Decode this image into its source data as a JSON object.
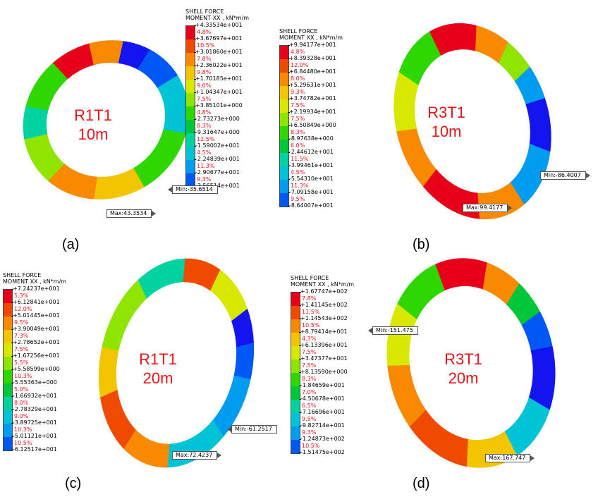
{
  "colors": {
    "scale": [
      "#e8001a",
      "#f04a00",
      "#f98a00",
      "#f3c400",
      "#d8e800",
      "#8fe400",
      "#2fd700",
      "#00c63a",
      "#00d2a0",
      "#00c4d6",
      "#009cf0",
      "#0058f4",
      "#1414f0"
    ],
    "title": "#e8141c"
  },
  "panels": [
    {
      "id": "a",
      "label": "(a)",
      "title_line1": "R1T1",
      "title_line2": "10m",
      "legend": {
        "header1": "SHELL FORCE",
        "header2": "MOMENT XX , kN*m/m",
        "values": [
          "+4.33534e+001",
          "+3.67697e+001",
          "+3.01860e+001",
          "+2.36022e+001",
          "+1.70185e+001",
          "+1.04347e+001",
          "+3.85101e+000",
          "-2.73273e+000",
          "-9.31647e+000",
          "-1.59002e+001",
          "-2.24839e+001",
          "-2.90677e+001",
          "-3.56514e+001"
        ],
        "percents": [
          "4.8%",
          "10.5%",
          "7.8%",
          "9.8%",
          "9.0%",
          "7.5%",
          "4.8%",
          "8.3%",
          "12.5%",
          "4.5%",
          "11.3%",
          "9.3%"
        ]
      },
      "max_label": "Max:43.3534",
      "min_label": "Min:-35.6514"
    },
    {
      "id": "b",
      "label": "(b)",
      "title_line1": "R3T1",
      "title_line2": "10m",
      "legend": {
        "header1": "SHELL FORCE",
        "header2": "MOMENT XX , kN*m/m",
        "values": [
          "+9.94177e+001",
          "+8.39328e+001",
          "+6.84480e+001",
          "+5.29631e+001",
          "+3.74782e+001",
          "+2.19934e+001",
          "+6.50849e+000",
          "-8.97638e+000",
          "-2.44612e+001",
          "-3.99461e+001",
          "-5.54310e+001",
          "-7.09158e+001",
          "-8.64007e+001"
        ],
        "percents": [
          "4.8%",
          "12.0%",
          "8.0%",
          "9.3%",
          "7.5%",
          "7.5%",
          "8.3%",
          "6.0%",
          "11.5%",
          "4.5%",
          "11.3%",
          "9.5%"
        ]
      },
      "max_label": "Max:99.4177",
      "min_label": "Min:-86.4007"
    },
    {
      "id": "c",
      "label": "(c)",
      "title_line1": "R1T1",
      "title_line2": "20m",
      "legend": {
        "header1": "SHELL FORCE",
        "header2": "MOMENT XX , kN*m/m",
        "values": [
          "+7.24237e+001",
          "+6.12841e+001",
          "+5.01445e+001",
          "+3.90049e+001",
          "+2.78652e+001",
          "+1.67256e+001",
          "+5.58599e+000",
          "-5.55363e+000",
          "-1.66932e+001",
          "-2.78329e+001",
          "-3.89725e+001",
          "-5.01121e+001",
          "-6.12517e+001"
        ],
        "percents": [
          "5.3%",
          "12.0%",
          "9.5%",
          "7.3%",
          "7.5%",
          "5.5%",
          "10.3%",
          "5.0%",
          "8.0%",
          "9.0%",
          "10.3%",
          "10.5%"
        ]
      },
      "max_label": "Max:72.4237",
      "min_label": "Min:-61.2517"
    },
    {
      "id": "d",
      "label": "(d)",
      "title_line1": "R3T1",
      "title_line2": "20m",
      "legend": {
        "header1": "SHELL FORCE",
        "header2": "MOMENT XX , kN*m/m",
        "values": [
          "+1.67747e+002",
          "+1.41145e+002",
          "+1.14543e+002",
          "+8.79414e+001",
          "+6.13396e+001",
          "+3.47377e+001",
          "+8.13590e+000",
          "-1.84659e+001",
          "-4.50678e+001",
          "-7.16696e+001",
          "-9.82714e+001",
          "-1.24873e+002",
          "-1.51475e+002"
        ],
        "percents": [
          "7.8%",
          "11.5%",
          "10.5%",
          "4.3%",
          "7.5%",
          "7.5%",
          "8.3%",
          "7.0%",
          "6.5%",
          "9.5%",
          "9.3%",
          "10.5%"
        ]
      },
      "max_label": "Max:167.747",
      "min_label": "Min:-151.475"
    }
  ]
}
